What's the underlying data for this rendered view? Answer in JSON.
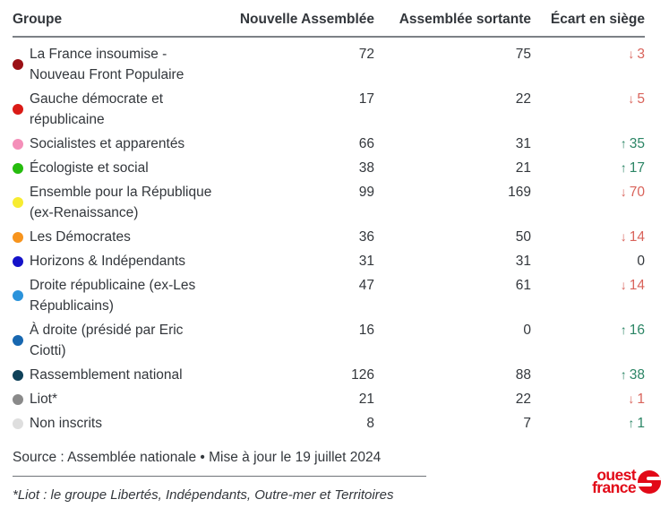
{
  "chart_data": {
    "type": "table",
    "columns": [
      "Groupe",
      "Nouvelle Assemblée",
      "Assemblée sortante",
      "Écart en siège"
    ],
    "rows": [
      {
        "group": "La France insoumise - Nouveau Front Populaire",
        "dot_color": "#9b1015",
        "nouvelle": 72,
        "sortante": 75,
        "ecart": -3
      },
      {
        "group": "Gauche démocrate et républicaine",
        "dot_color": "#da1b16",
        "nouvelle": 17,
        "sortante": 22,
        "ecart": -5
      },
      {
        "group": "Socialistes et apparentés",
        "dot_color": "#f48fb9",
        "nouvelle": 66,
        "sortante": 31,
        "ecart": 35
      },
      {
        "group": "Écologiste et social",
        "dot_color": "#26bc0e",
        "nouvelle": 38,
        "sortante": 21,
        "ecart": 17
      },
      {
        "group": "Ensemble pour la République (ex-Renaissance)",
        "dot_color": "#f7ec31",
        "nouvelle": 99,
        "sortante": 169,
        "ecart": -70
      },
      {
        "group": "Les Démocrates",
        "dot_color": "#f7941d",
        "nouvelle": 36,
        "sortante": 50,
        "ecart": -14
      },
      {
        "group": "Horizons & Indépendants",
        "dot_color": "#1512c9",
        "nouvelle": 31,
        "sortante": 31,
        "ecart": 0
      },
      {
        "group": "Droite républicaine (ex-Les Républicains)",
        "dot_color": "#2b93db",
        "nouvelle": 47,
        "sortante": 61,
        "ecart": -14
      },
      {
        "group": "À droite (présidé par Eric Ciotti)",
        "dot_color": "#1767b0",
        "nouvelle": 16,
        "sortante": 0,
        "ecart": 16
      },
      {
        "group": "Rassemblement national",
        "dot_color": "#0f4159",
        "nouvelle": 126,
        "sortante": 88,
        "ecart": 38
      },
      {
        "group": "Liot*",
        "dot_color": "#8a8a8a",
        "nouvelle": 21,
        "sortante": 22,
        "ecart": -1
      },
      {
        "group": "Non inscrits",
        "dot_color": "#dedede",
        "nouvelle": 8,
        "sortante": 7,
        "ecart": 1
      }
    ]
  },
  "icons": {
    "up_arrow": "↑",
    "down_arrow": "↓"
  },
  "footer": {
    "source": "Source : Assemblée nationale • Mise à jour le 19 juillet 2024",
    "footnote": "*Liot : le groupe Libertés, Indépendants, Outre-mer et Territoires"
  },
  "logo": {
    "line1": "ouest",
    "line2": "france"
  },
  "colors": {
    "text": "#33373c",
    "positive": "#2b8565",
    "negative": "#d9635b",
    "logo_red": "#e20917"
  }
}
